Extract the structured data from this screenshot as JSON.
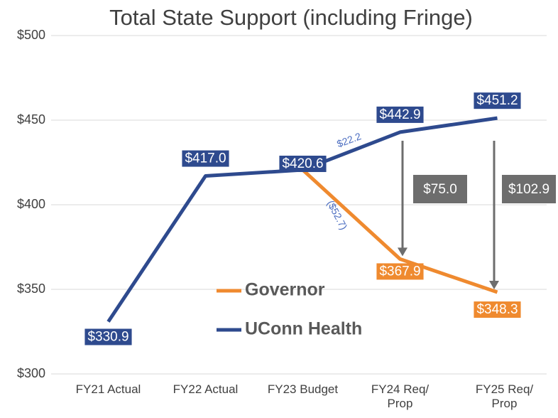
{
  "chart_data": {
    "type": "line",
    "title": "Total State Support (including Fringe)",
    "categories": [
      "FY21 Actual",
      "FY22 Actual",
      "FY23 Budget",
      "FY24 Req/ Prop",
      "FY25 Req/ Prop"
    ],
    "series": [
      {
        "name": "Governor",
        "color": "#ef8a2f",
        "values": [
          null,
          null,
          420.6,
          367.9,
          348.3
        ],
        "value_labels": [
          null,
          null,
          null,
          "$367.9",
          "$348.3"
        ]
      },
      {
        "name": "UConn Health",
        "color": "#2e4a8e",
        "values": [
          330.9,
          417.0,
          420.6,
          442.9,
          451.2
        ],
        "value_labels": [
          "$330.9",
          "$417.0",
          "$420.6",
          "$442.9",
          "$451.2"
        ]
      }
    ],
    "ylim": [
      300,
      500
    ],
    "yticks": [
      {
        "value": 300,
        "label": "$300"
      },
      {
        "value": 350,
        "label": "$350"
      },
      {
        "value": 400,
        "label": "$400"
      },
      {
        "value": 450,
        "label": "$450"
      },
      {
        "value": 500,
        "label": "$500"
      }
    ],
    "grid": true,
    "annotations": [
      {
        "text": "$22.2"
      },
      {
        "text": "($52.7)"
      },
      {
        "text": "$75.0"
      },
      {
        "text": "$102.9"
      }
    ]
  }
}
